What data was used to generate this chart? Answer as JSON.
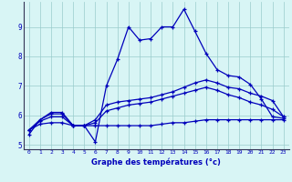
{
  "xlabel": "Graphe des températures (°c)",
  "bg_color": "#d8f5f5",
  "line_color": "#0000bb",
  "grid_color": "#99cccc",
  "axis_color": "#555577",
  "xlim": [
    -0.5,
    23.5
  ],
  "ylim": [
    4.85,
    9.85
  ],
  "yticks": [
    5,
    6,
    7,
    8,
    9
  ],
  "xticks": [
    0,
    1,
    2,
    3,
    4,
    5,
    6,
    7,
    8,
    9,
    10,
    11,
    12,
    13,
    14,
    15,
    16,
    17,
    18,
    19,
    20,
    21,
    22,
    23
  ],
  "line1_x": [
    0,
    1,
    2,
    3,
    4,
    5,
    6,
    7,
    8,
    9,
    10,
    11,
    12,
    13,
    14,
    15,
    16,
    17,
    18,
    19,
    20,
    21,
    22,
    23
  ],
  "line1_y": [
    5.35,
    5.85,
    6.1,
    6.1,
    5.65,
    5.65,
    5.1,
    7.0,
    7.9,
    9.0,
    8.55,
    8.6,
    9.0,
    9.0,
    9.6,
    8.85,
    8.1,
    7.55,
    7.35,
    7.3,
    7.05,
    6.55,
    5.95,
    5.9
  ],
  "line2_x": [
    0,
    1,
    2,
    3,
    4,
    5,
    6,
    7,
    8,
    9,
    10,
    11,
    12,
    13,
    14,
    15,
    16,
    17,
    18,
    19,
    20,
    21,
    22,
    23
  ],
  "line2_y": [
    5.5,
    5.85,
    6.05,
    6.05,
    5.65,
    5.65,
    5.85,
    6.35,
    6.45,
    6.5,
    6.55,
    6.6,
    6.7,
    6.8,
    6.95,
    7.1,
    7.2,
    7.1,
    6.95,
    6.9,
    6.75,
    6.65,
    6.5,
    5.95
  ],
  "line3_x": [
    0,
    1,
    2,
    3,
    4,
    5,
    6,
    7,
    8,
    9,
    10,
    11,
    12,
    13,
    14,
    15,
    16,
    17,
    18,
    19,
    20,
    21,
    22,
    23
  ],
  "line3_y": [
    5.5,
    5.8,
    5.95,
    5.95,
    5.65,
    5.65,
    5.75,
    6.15,
    6.25,
    6.35,
    6.4,
    6.45,
    6.55,
    6.65,
    6.75,
    6.85,
    6.95,
    6.85,
    6.7,
    6.6,
    6.45,
    6.35,
    6.2,
    5.95
  ],
  "line4_x": [
    0,
    1,
    2,
    3,
    4,
    5,
    6,
    7,
    8,
    9,
    10,
    11,
    12,
    13,
    14,
    15,
    16,
    17,
    18,
    19,
    20,
    21,
    22,
    23
  ],
  "line4_y": [
    5.5,
    5.7,
    5.75,
    5.75,
    5.65,
    5.65,
    5.65,
    5.65,
    5.65,
    5.65,
    5.65,
    5.65,
    5.7,
    5.75,
    5.75,
    5.8,
    5.85,
    5.85,
    5.85,
    5.85,
    5.85,
    5.85,
    5.85,
    5.85
  ]
}
